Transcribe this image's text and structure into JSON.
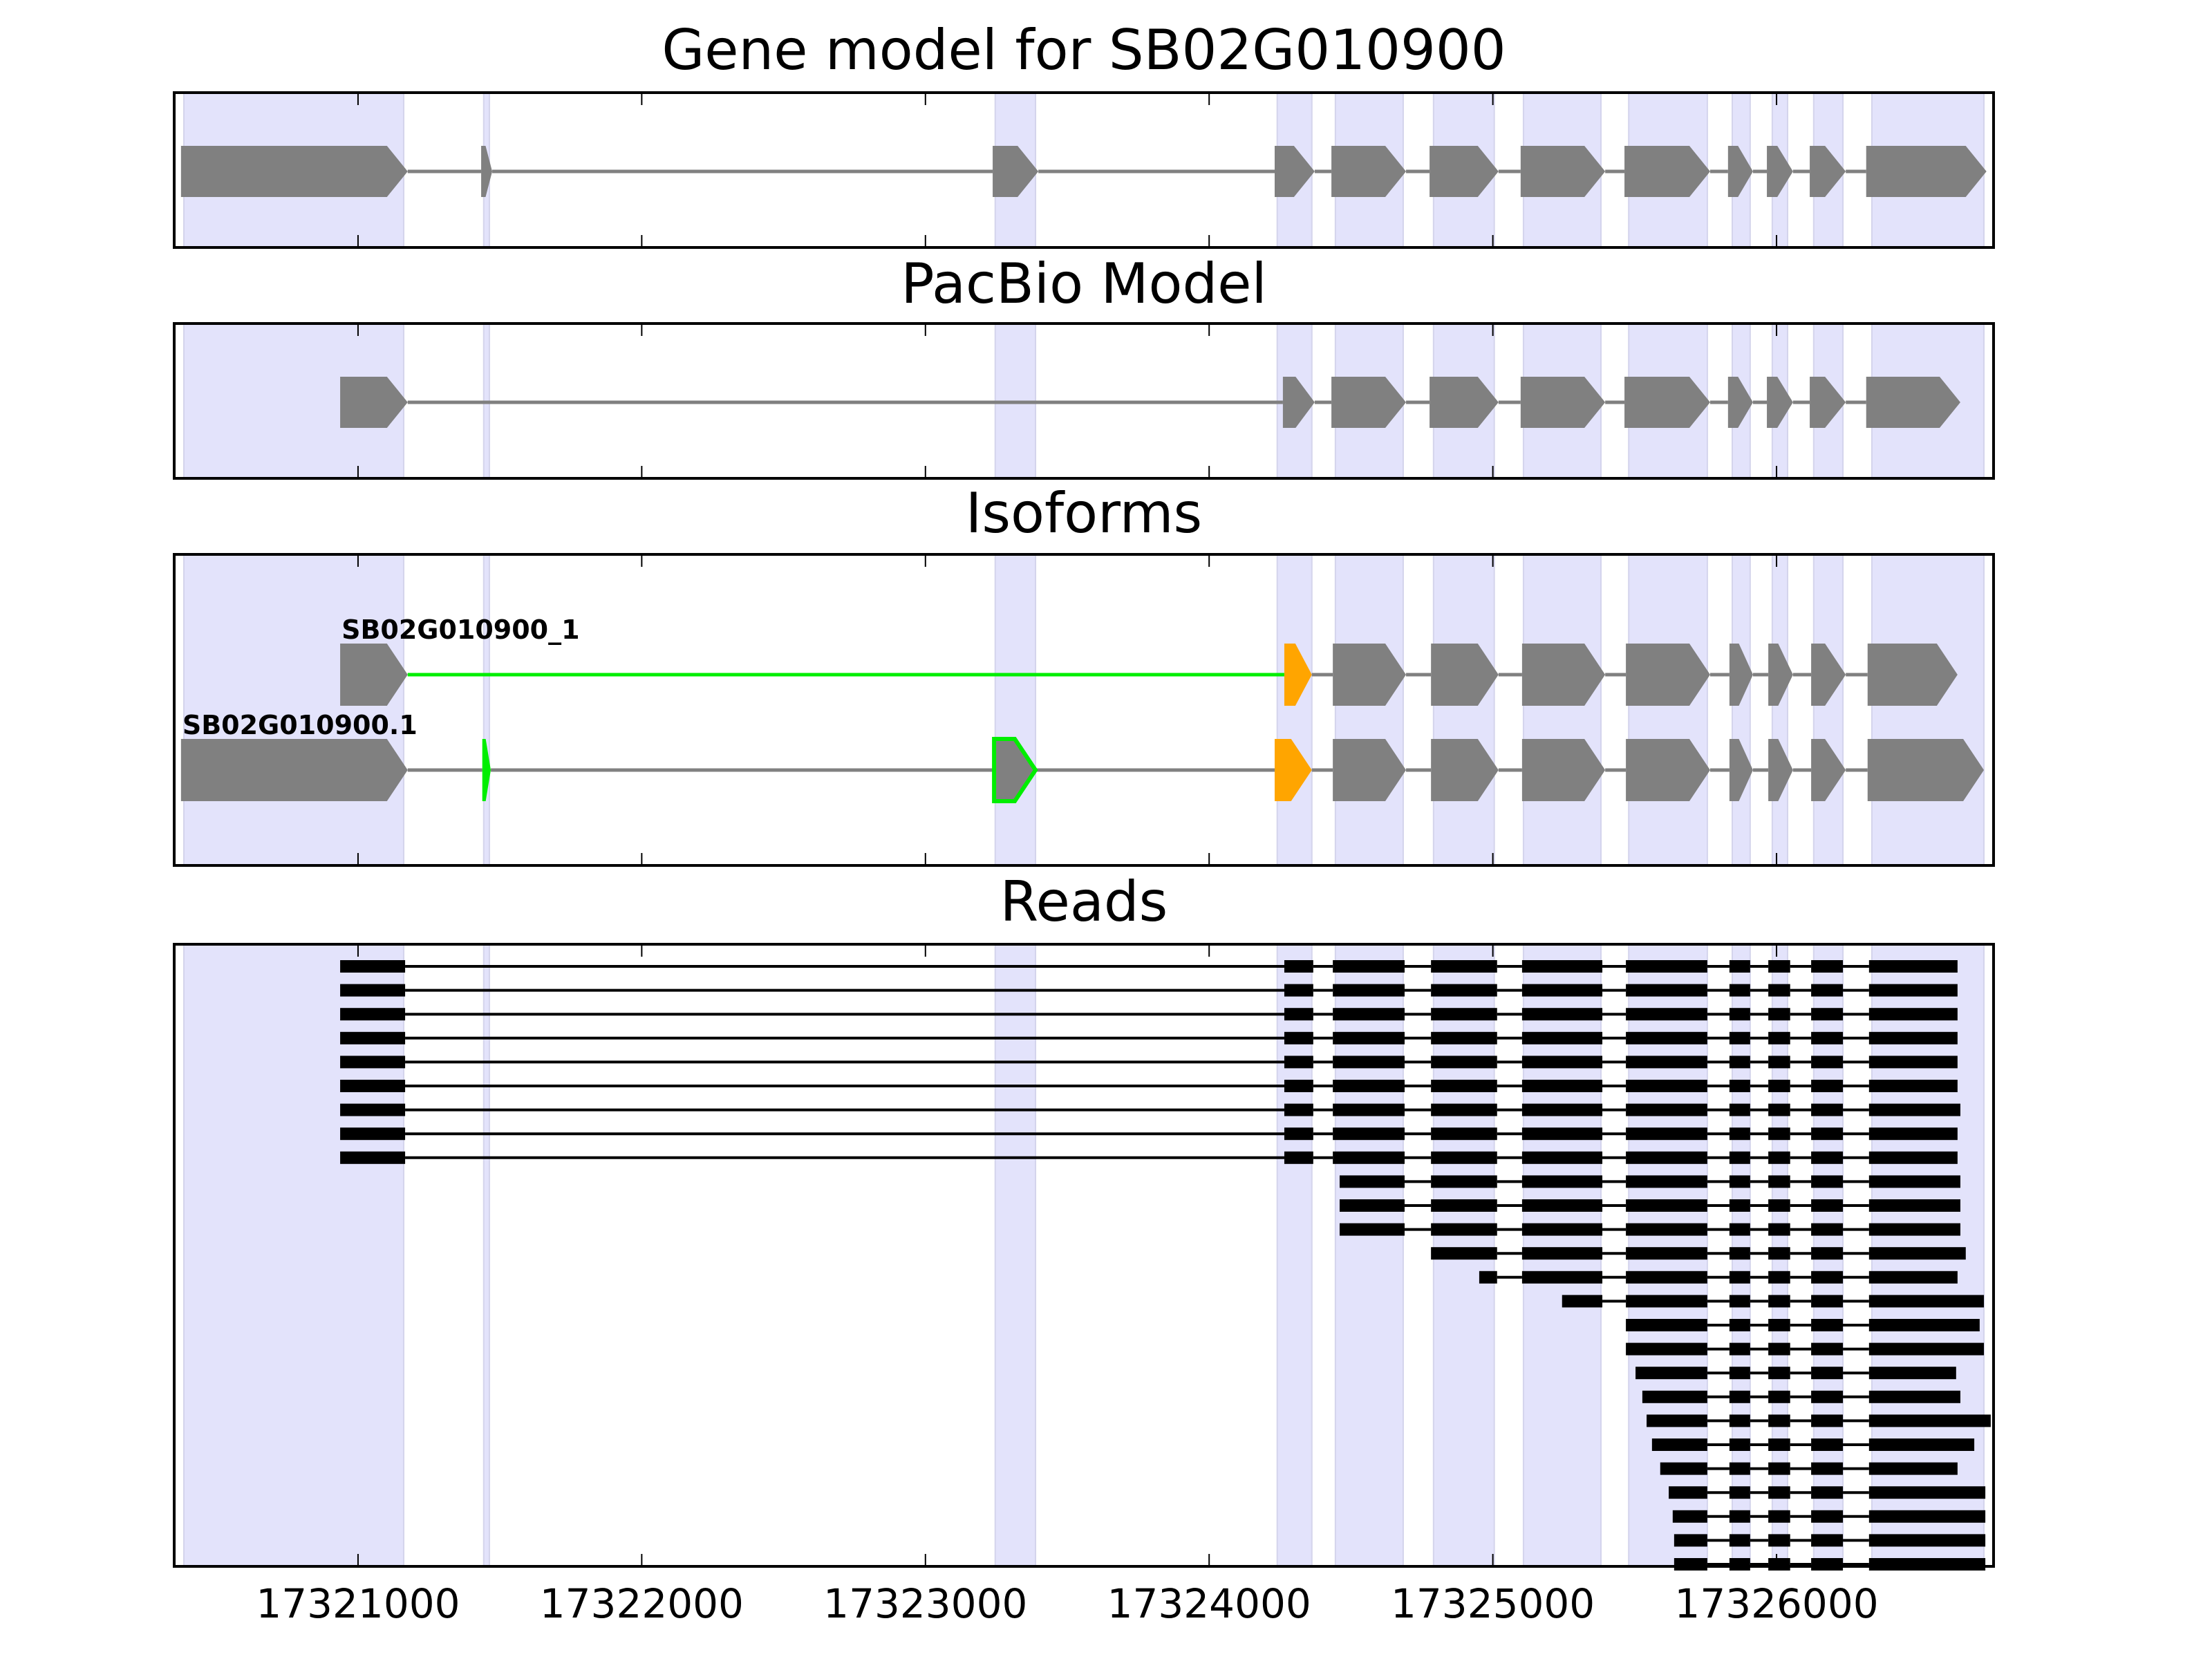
{
  "chart_data": {
    "type": "gene-structure",
    "xlim": [
      17320352,
      17326765
    ],
    "xticks": [
      17321000,
      17322000,
      17323000,
      17324000,
      17325000,
      17326000
    ],
    "xtick_labels": [
      "17321000",
      "17322000",
      "17323000",
      "17324000",
      "17325000",
      "17326000"
    ],
    "colors": {
      "shade": "#e3e3fb",
      "shade_edge": "#d4d4ec",
      "exon": "#808080",
      "intron": "#808080",
      "novel": "#00ee00",
      "alt": "#ffa500",
      "read": "#000000"
    },
    "shaded_regions": [
      [
        17320386,
        17321161
      ],
      [
        17321443,
        17321463
      ],
      [
        17323246,
        17323388
      ],
      [
        17324240,
        17324362
      ],
      [
        17324445,
        17324684
      ],
      [
        17324791,
        17325005
      ],
      [
        17325108,
        17325381
      ],
      [
        17325479,
        17325756
      ],
      [
        17325844,
        17325907
      ],
      [
        17325985,
        17326039
      ],
      [
        17326131,
        17326234
      ],
      [
        17326336,
        17326731
      ]
    ],
    "panels": [
      {
        "title": "Gene model for SB02G010900",
        "kind": "model",
        "tracks": [
          {
            "label": "",
            "exons": [
              {
                "s": 17320376,
                "e": 17321175
              },
              {
                "s": 17321434,
                "e": 17321473
              },
              {
                "s": 17323237,
                "e": 17323398
              },
              {
                "s": 17324231,
                "e": 17324372
              },
              {
                "s": 17324431,
                "e": 17324694
              },
              {
                "s": 17324777,
                "e": 17325020
              },
              {
                "s": 17325098,
                "e": 17325396
              },
              {
                "s": 17325464,
                "e": 17325766
              },
              {
                "s": 17325829,
                "e": 17325917
              },
              {
                "s": 17325966,
                "e": 17326058
              },
              {
                "s": 17326117,
                "e": 17326244
              },
              {
                "s": 17326316,
                "e": 17326740
              }
            ]
          }
        ]
      },
      {
        "title": "PacBio Model",
        "kind": "model",
        "tracks": [
          {
            "label": "",
            "exons": [
              {
                "s": 17320937,
                "e": 17321175
              },
              {
                "s": 17324260,
                "e": 17324372
              },
              {
                "s": 17324431,
                "e": 17324694
              },
              {
                "s": 17324777,
                "e": 17325020
              },
              {
                "s": 17325098,
                "e": 17325396
              },
              {
                "s": 17325464,
                "e": 17325766
              },
              {
                "s": 17325829,
                "e": 17325917
              },
              {
                "s": 17325966,
                "e": 17326058
              },
              {
                "s": 17326117,
                "e": 17326244
              },
              {
                "s": 17326316,
                "e": 17326648
              }
            ]
          }
        ]
      },
      {
        "title": "Isoforms",
        "kind": "isoforms",
        "tracks": [
          {
            "label": "SB02G010900_1",
            "exons": [
              {
                "s": 17320937,
                "e": 17321175
              },
              {
                "s": 17324265,
                "e": 17324362,
                "fill": "alt"
              },
              {
                "s": 17324436,
                "e": 17324694
              },
              {
                "s": 17324782,
                "e": 17325020
              },
              {
                "s": 17325103,
                "e": 17325396
              },
              {
                "s": 17325469,
                "e": 17325766
              },
              {
                "s": 17325834,
                "e": 17325917
              },
              {
                "s": 17325971,
                "e": 17326058
              },
              {
                "s": 17326122,
                "e": 17326244
              },
              {
                "s": 17326321,
                "e": 17326638
              }
            ],
            "novel_introns": [
              0
            ]
          },
          {
            "label": "SB02G010900.1",
            "exons": [
              {
                "s": 17320376,
                "e": 17321175
              },
              {
                "s": 17321438,
                "e": 17321468,
                "fill": "novel"
              },
              {
                "s": 17323242,
                "e": 17323388,
                "outline": "novel"
              },
              {
                "s": 17324231,
                "e": 17324362,
                "fill": "alt"
              },
              {
                "s": 17324436,
                "e": 17324694
              },
              {
                "s": 17324782,
                "e": 17325020
              },
              {
                "s": 17325103,
                "e": 17325396
              },
              {
                "s": 17325469,
                "e": 17325766
              },
              {
                "s": 17325834,
                "e": 17325917
              },
              {
                "s": 17325971,
                "e": 17326058
              },
              {
                "s": 17326122,
                "e": 17326244
              },
              {
                "s": 17326321,
                "e": 17326731
              }
            ],
            "novel_introns": []
          }
        ]
      },
      {
        "title": "Reads",
        "kind": "reads",
        "reads": [
          {
            "start": 17320937,
            "end": 17326638
          },
          {
            "start": 17320937,
            "end": 17326638
          },
          {
            "start": 17320937,
            "end": 17326638
          },
          {
            "start": 17320937,
            "end": 17326638
          },
          {
            "start": 17320937,
            "end": 17326638
          },
          {
            "start": 17320937,
            "end": 17326638
          },
          {
            "start": 17320937,
            "end": 17326648
          },
          {
            "start": 17320937,
            "end": 17326638
          },
          {
            "start": 17320937,
            "end": 17326638
          },
          {
            "start": 17324460,
            "end": 17326648
          },
          {
            "start": 17324460,
            "end": 17326648
          },
          {
            "start": 17324460,
            "end": 17326648
          },
          {
            "start": 17324777,
            "end": 17326667
          },
          {
            "start": 17324952,
            "end": 17326638
          },
          {
            "start": 17325244,
            "end": 17326731
          },
          {
            "start": 17325464,
            "end": 17326716
          },
          {
            "start": 17325464,
            "end": 17326731
          },
          {
            "start": 17325503,
            "end": 17326633
          },
          {
            "start": 17325527,
            "end": 17326648
          },
          {
            "start": 17325542,
            "end": 17326755
          },
          {
            "start": 17325561,
            "end": 17326697
          },
          {
            "start": 17325590,
            "end": 17326638
          },
          {
            "start": 17325620,
            "end": 17326736
          },
          {
            "start": 17325634,
            "end": 17326736
          },
          {
            "start": 17325639,
            "end": 17326736
          },
          {
            "start": 17325639,
            "end": 17326736
          }
        ],
        "read_exon_template": [
          [
            17320937,
            17321166
          ],
          [
            17324265,
            17324367
          ],
          [
            17324436,
            17324689
          ],
          [
            17324782,
            17325015
          ],
          [
            17325103,
            17325386
          ],
          [
            17325469,
            17325756
          ],
          [
            17325834,
            17325907
          ],
          [
            17325971,
            17326048
          ],
          [
            17326122,
            17326234
          ],
          [
            17326326,
            17326800
          ]
        ]
      }
    ]
  }
}
